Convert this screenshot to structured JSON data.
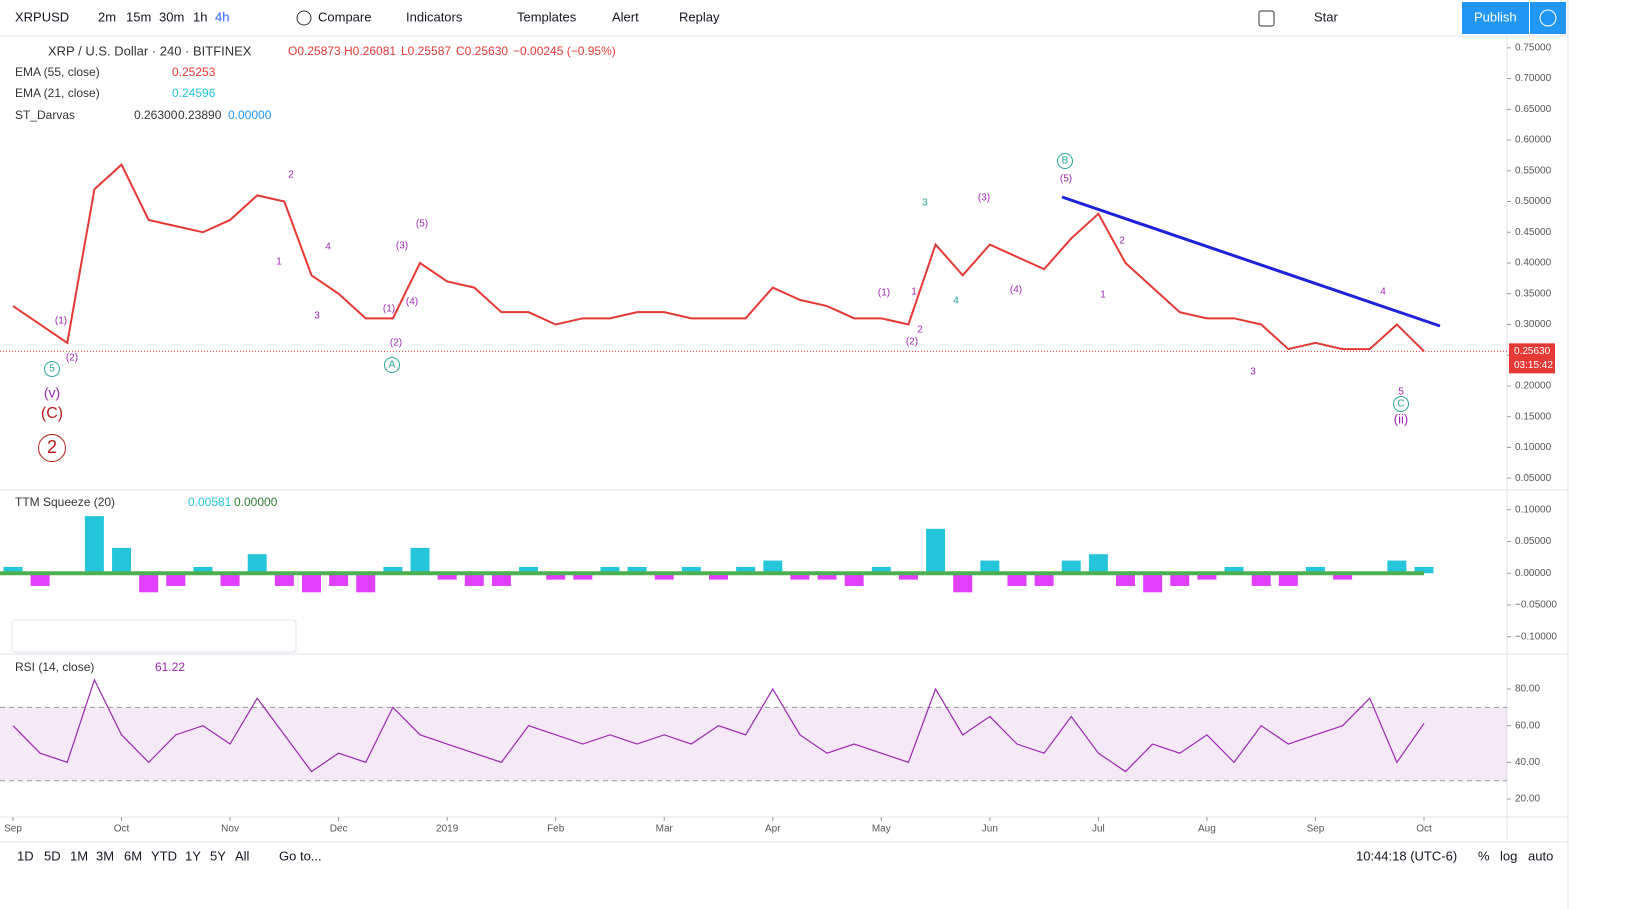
{
  "toolbar": {
    "symbol": "XRPUSD",
    "intervals": [
      "2m",
      "15m",
      "30m",
      "1h",
      "4h"
    ],
    "buttons": [
      "Compare",
      "Indicators",
      "Templates",
      "Alert",
      "Replay"
    ],
    "star": "Star",
    "publish": "Publish"
  },
  "legend": {
    "title": "XRP / U.S. Dollar · 240 · BITFINEX",
    "ohlc": [
      "O0.25873",
      "H0.26081",
      "L0.25587",
      "C0.25630"
    ],
    "change": "−0.00245 (−0.95%)",
    "ema55": {
      "name": "EMA (55, close)",
      "value": "0.25253"
    },
    "ema21": {
      "name": "EMA (21, close)",
      "value": "0.24596"
    },
    "darvas": {
      "name": "ST_Darvas",
      "values": [
        "0.26300",
        "0.23890",
        "0.00000"
      ]
    },
    "ttm": {
      "name": "TTM Squeeze (20)",
      "values": [
        "0.00581",
        "0.00000"
      ]
    },
    "rsi": {
      "name": "RSI (14, close)",
      "value": "61.22"
    }
  },
  "annotations": [
    "(v)",
    "(C)",
    "2",
    "5",
    "(1)",
    "(2)",
    "2",
    "4",
    "3",
    "1",
    "(3)",
    "(4)",
    "(5)",
    "(1)",
    "(2)",
    "A",
    "1",
    "2",
    "3",
    "4",
    "(2)",
    "(1)",
    "(3)",
    "(4)",
    "(5)",
    "B",
    "2",
    "1",
    "3",
    "4",
    "5",
    "C",
    "(ii)"
  ],
  "chart_data": [
    {
      "type": "line",
      "color": "#e53935",
      "categories": [
        "Sep",
        null,
        null,
        null,
        "Oct",
        null,
        null,
        null,
        "Nov",
        null,
        null,
        null,
        "Dec",
        null,
        null,
        null,
        "2019",
        null,
        null,
        null,
        "Feb",
        null,
        null,
        null,
        "Mar",
        null,
        null,
        null,
        "Apr",
        null,
        null,
        null,
        "May",
        null,
        null,
        null,
        "Jun",
        null,
        null,
        null,
        "Jul",
        null,
        null,
        null,
        "Aug",
        null,
        null,
        null,
        "Sep",
        null,
        null,
        null,
        "Oct"
      ],
      "values": [
        0.33,
        0.3,
        0.27,
        0.52,
        0.56,
        0.47,
        0.46,
        0.45,
        0.47,
        0.51,
        0.5,
        0.38,
        0.35,
        0.31,
        0.31,
        0.4,
        0.37,
        0.36,
        0.32,
        0.32,
        0.3,
        0.31,
        0.31,
        0.32,
        0.32,
        0.31,
        0.31,
        0.31,
        0.36,
        0.34,
        0.33,
        0.31,
        0.31,
        0.3,
        0.43,
        0.38,
        0.43,
        0.41,
        0.39,
        0.44,
        0.48,
        0.4,
        0.36,
        0.32,
        0.31,
        0.31,
        0.3,
        0.26,
        0.27,
        0.26,
        0.26,
        0.3,
        0.2563
      ],
      "value_labels": {
        "last": "0.25630"
      },
      "countdown": "03:15:42",
      "ylim": [
        0.034,
        0.766
      ],
      "yticks": [
        {
          "value": 0.05,
          "label": "0.05000"
        },
        {
          "value": 0.1,
          "label": "0.10000"
        },
        {
          "value": 0.15,
          "label": "0.15000"
        },
        {
          "value": 0.2,
          "label": "0.20000"
        },
        {
          "value": 0.25,
          "label": "0.25000"
        },
        {
          "value": 0.3,
          "label": "0.30000"
        },
        {
          "value": 0.35,
          "label": "0.35000"
        },
        {
          "value": 0.4,
          "label": "0.40000"
        },
        {
          "value": 0.45,
          "label": "0.45000"
        },
        {
          "value": 0.5,
          "label": "0.50000"
        },
        {
          "value": 0.55,
          "label": "0.55000"
        },
        {
          "value": 0.6,
          "label": "0.60000"
        },
        {
          "value": 0.65,
          "label": "0.65000"
        },
        {
          "value": 0.7,
          "label": "0.70000"
        },
        {
          "value": 0.75,
          "label": "0.75000"
        }
      ]
    },
    {
      "type": "bar",
      "color_up": "#26c6da",
      "color_down": "#e040fb",
      "zero_color": "#4caf50",
      "values": [
        0.01,
        -0.02,
        0,
        0.09,
        0.04,
        -0.03,
        -0.02,
        0.01,
        -0.02,
        0.03,
        -0.02,
        -0.03,
        -0.02,
        -0.03,
        0.01,
        0.04,
        -0.01,
        -0.02,
        -0.02,
        0.01,
        -0.01,
        -0.01,
        0.01,
        0.01,
        -0.01,
        0.01,
        -0.01,
        0.01,
        0.02,
        -0.01,
        -0.01,
        -0.02,
        0.01,
        -0.01,
        0.07,
        -0.03,
        0.02,
        -0.02,
        -0.02,
        0.02,
        0.03,
        -0.02,
        -0.03,
        -0.02,
        -0.01,
        0.01,
        -0.02,
        -0.02,
        0.01,
        -0.01,
        0,
        0.02,
        0.01
      ],
      "ylim": [
        -0.124,
        0.128
      ],
      "yticks": [
        {
          "value": -0.1,
          "label": "−0.10000"
        },
        {
          "value": -0.05,
          "label": "−0.05000"
        },
        {
          "value": 0,
          "label": "0.00000"
        },
        {
          "value": 0.05,
          "label": "0.05000"
        },
        {
          "value": 0.1,
          "label": "0.10000"
        }
      ]
    },
    {
      "type": "line",
      "color": "#9c27b0",
      "band": [
        30,
        70
      ],
      "values": [
        60,
        45,
        40,
        85,
        55,
        40,
        55,
        60,
        50,
        75,
        55,
        35,
        45,
        40,
        70,
        55,
        50,
        45,
        40,
        60,
        55,
        50,
        55,
        50,
        55,
        50,
        60,
        55,
        80,
        55,
        45,
        50,
        45,
        40,
        80,
        55,
        65,
        50,
        45,
        65,
        45,
        35,
        50,
        45,
        55,
        40,
        60,
        50,
        55,
        60,
        75,
        40,
        61.22
      ],
      "ylim": [
        11.3,
        98
      ],
      "yticks": [
        {
          "value": 20,
          "label": "20.00"
        },
        {
          "value": 40,
          "label": "40.00"
        },
        {
          "value": 60,
          "label": "60.00"
        },
        {
          "value": 80,
          "label": "80.00"
        }
      ]
    }
  ],
  "bottom": {
    "ranges": [
      "1D",
      "5D",
      "1M",
      "3M",
      "6M",
      "YTD",
      "1Y",
      "5Y",
      "All"
    ],
    "goto": "Go to...",
    "time": "10:44:18 (UTC-6)",
    "modes": [
      "%",
      "log",
      "auto"
    ]
  }
}
